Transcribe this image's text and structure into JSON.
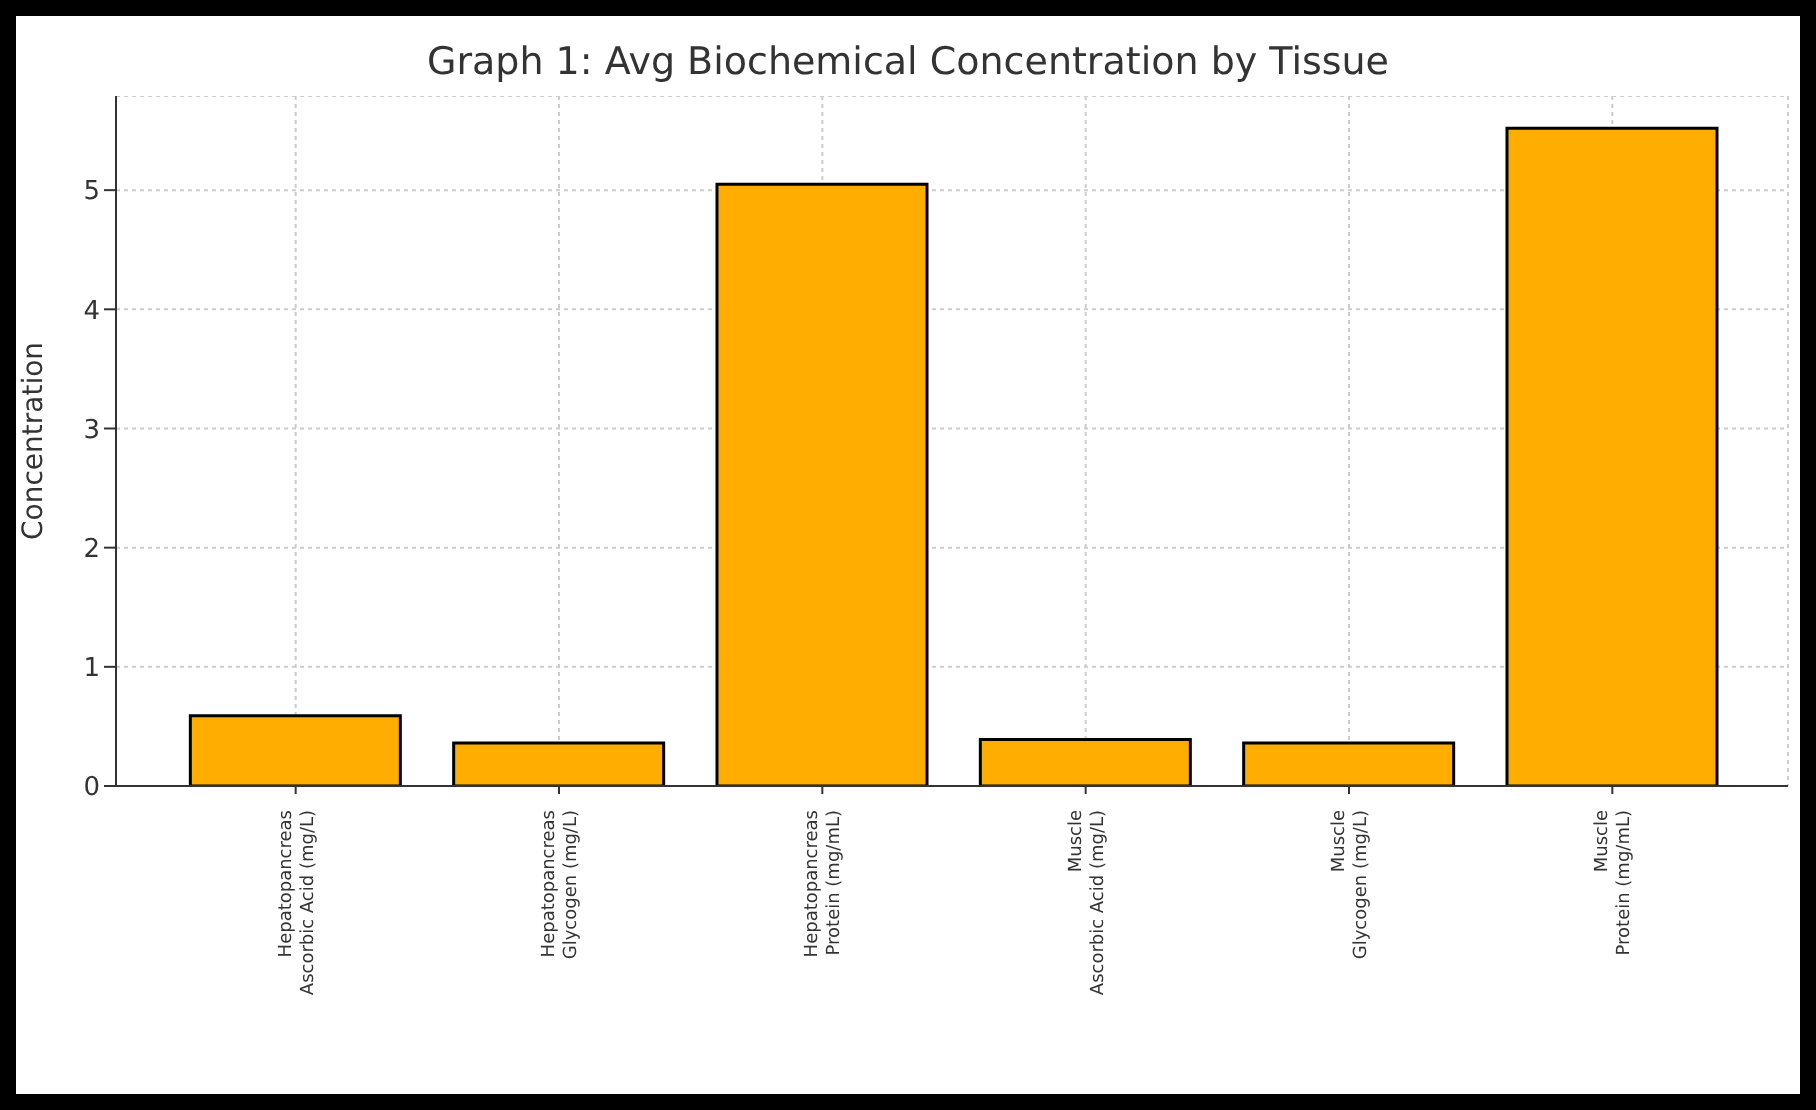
{
  "chart_data": {
    "type": "bar",
    "title": "Graph 1: Avg Biochemical Concentration by Tissue",
    "ylabel": "Concentration",
    "categories": [
      "Hepatopancreas\nAscorbic Acid (mg/L)",
      "Hepatopancreas\nGlycogen (mg/L)",
      "Hepatopancreas\nProtein (mg/mL)",
      "Muscle\nAscorbic Acid (mg/L)",
      "Muscle\nGlycogen (mg/L)",
      "Muscle\nProtein (mg/mL)"
    ],
    "values": [
      0.59,
      0.36,
      5.05,
      0.39,
      0.36,
      5.52
    ],
    "color": "#ffae00",
    "ylim": [
      0,
      5.79
    ],
    "yticks": [
      0,
      1,
      2,
      3,
      4,
      5
    ],
    "grid": true
  }
}
